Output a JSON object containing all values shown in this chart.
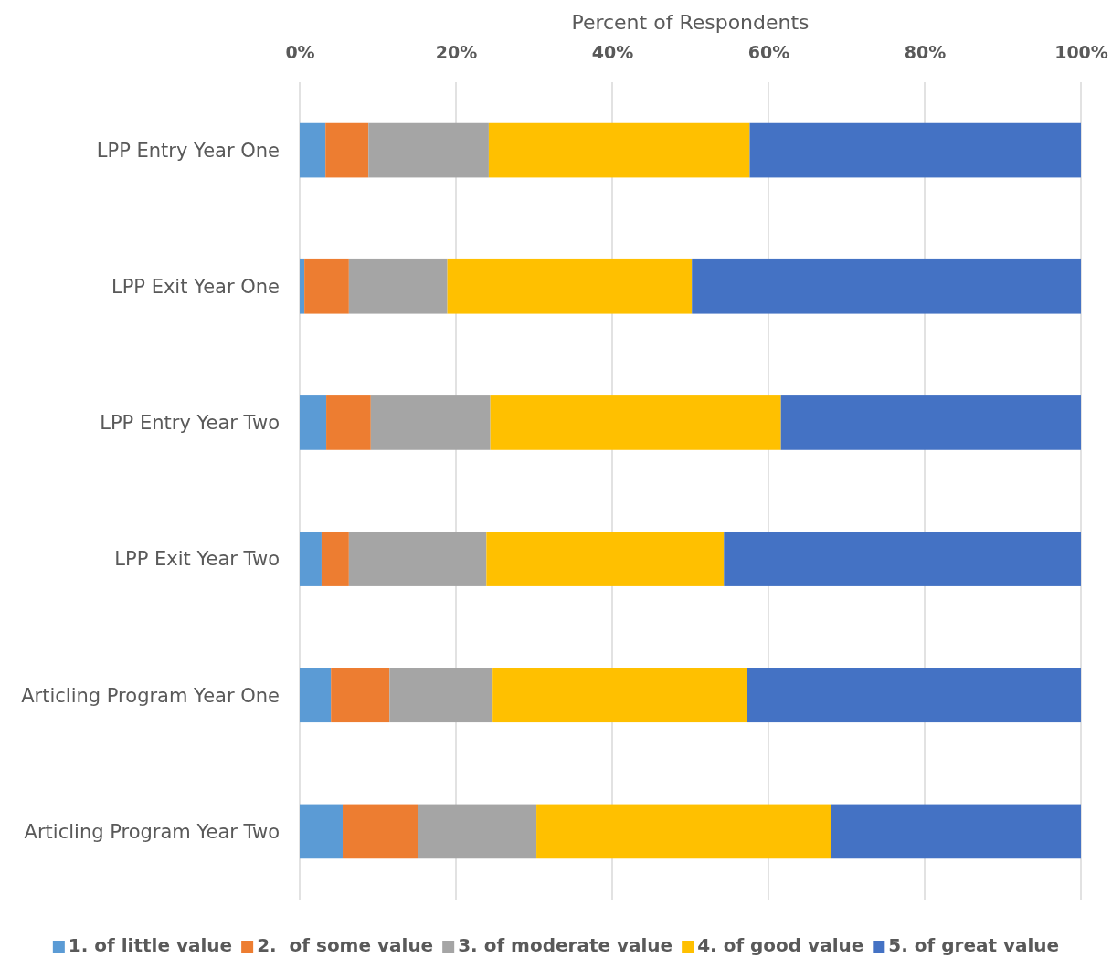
{
  "chart_data": {
    "type": "bar",
    "orientation": "horizontal",
    "stacked": true,
    "xlabel": "Percent of Respondents",
    "categories": [
      "LPP Entry Year One",
      "LPP Exit Year One",
      "LPP Entry Year Two",
      "LPP Exit Year Two",
      "Articling Program Year One",
      "Articling Program Year Two"
    ],
    "series": [
      {
        "name": "1. of little value",
        "color": "#5b9bd5",
        "values": [
          3.3,
          0.6,
          3.4,
          2.8,
          4.0,
          5.5
        ]
      },
      {
        "name": "2.  of some value",
        "color": "#ed7d31",
        "values": [
          5.5,
          5.7,
          5.7,
          3.5,
          7.5,
          9.6
        ]
      },
      {
        "name": "3. of moderate value",
        "color": "#a5a5a5",
        "values": [
          15.4,
          12.6,
          15.3,
          17.6,
          13.2,
          15.2
        ]
      },
      {
        "name": "4. of good value",
        "color": "#ffc000",
        "values": [
          33.4,
          31.3,
          37.2,
          30.4,
          32.5,
          37.7
        ]
      },
      {
        "name": "5. of great value",
        "color": "#4472c4",
        "values": [
          42.4,
          49.8,
          38.4,
          45.7,
          42.8,
          32.0
        ]
      }
    ],
    "xlim": [
      0,
      100
    ],
    "xticks": [
      {
        "value": 0,
        "label": "0%"
      },
      {
        "value": 20,
        "label": "20%"
      },
      {
        "value": 40,
        "label": "40%"
      },
      {
        "value": 60,
        "label": "60%"
      },
      {
        "value": 80,
        "label": "80%"
      },
      {
        "value": 100,
        "label": "100%"
      }
    ],
    "grid": "x",
    "legend": "bottom"
  }
}
